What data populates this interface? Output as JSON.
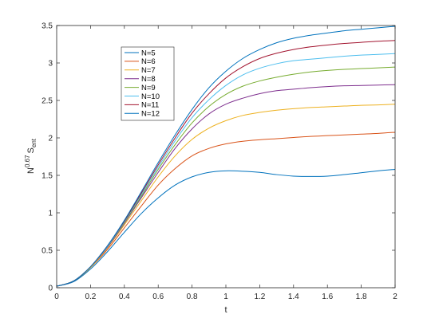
{
  "chart_data": {
    "type": "line",
    "title": "",
    "xlabel": "t",
    "ylabel": {
      "base": "N",
      "exponent": "0.67",
      "symbol": "S",
      "subscript": "ent"
    },
    "xlim": [
      0,
      2
    ],
    "ylim": [
      0,
      3.5
    ],
    "x_ticks": [
      "0",
      "0.2",
      "0.4",
      "0.6",
      "0.8",
      "1",
      "1.2",
      "1.4",
      "1.6",
      "1.8",
      "2"
    ],
    "y_ticks": [
      "0",
      "0.5",
      "1",
      "1.5",
      "2",
      "2.5",
      "3",
      "3.5"
    ],
    "grid": false,
    "legend_position": "top-left",
    "x": [
      0,
      0.1,
      0.2,
      0.3,
      0.4,
      0.5,
      0.6,
      0.7,
      0.8,
      0.9,
      1.0,
      1.1,
      1.2,
      1.3,
      1.4,
      1.5,
      1.6,
      1.7,
      1.8,
      1.9,
      2.0
    ],
    "series": [
      {
        "name": "N=5",
        "color": "#0072BD",
        "values": [
          0.02,
          0.08,
          0.25,
          0.48,
          0.74,
          0.99,
          1.2,
          1.37,
          1.48,
          1.54,
          1.56,
          1.555,
          1.54,
          1.51,
          1.49,
          1.485,
          1.49,
          1.51,
          1.535,
          1.56,
          1.58
        ]
      },
      {
        "name": "N=6",
        "color": "#D95319",
        "values": [
          0.02,
          0.09,
          0.27,
          0.51,
          0.8,
          1.09,
          1.37,
          1.59,
          1.76,
          1.86,
          1.92,
          1.955,
          1.975,
          1.99,
          2.005,
          2.02,
          2.03,
          2.04,
          2.05,
          2.06,
          2.075
        ]
      },
      {
        "name": "N=7",
        "color": "#EDB120",
        "values": [
          0.02,
          0.09,
          0.27,
          0.53,
          0.84,
          1.16,
          1.48,
          1.76,
          1.98,
          2.13,
          2.23,
          2.3,
          2.34,
          2.37,
          2.39,
          2.405,
          2.415,
          2.425,
          2.435,
          2.44,
          2.45
        ]
      },
      {
        "name": "N=8",
        "color": "#7E2F8E",
        "values": [
          0.02,
          0.09,
          0.28,
          0.54,
          0.86,
          1.2,
          1.54,
          1.86,
          2.12,
          2.32,
          2.45,
          2.53,
          2.59,
          2.63,
          2.65,
          2.67,
          2.685,
          2.695,
          2.7,
          2.705,
          2.71
        ]
      },
      {
        "name": "N=9",
        "color": "#77AC30",
        "values": [
          0.02,
          0.09,
          0.28,
          0.55,
          0.87,
          1.22,
          1.58,
          1.91,
          2.2,
          2.42,
          2.58,
          2.69,
          2.76,
          2.81,
          2.85,
          2.88,
          2.9,
          2.915,
          2.925,
          2.935,
          2.945
        ]
      },
      {
        "name": "N=10",
        "color": "#4DBEEE",
        "values": [
          0.02,
          0.09,
          0.28,
          0.55,
          0.88,
          1.24,
          1.61,
          1.96,
          2.27,
          2.51,
          2.7,
          2.84,
          2.93,
          2.99,
          3.03,
          3.05,
          3.07,
          3.09,
          3.105,
          3.115,
          3.125
        ]
      },
      {
        "name": "N=11",
        "color": "#A2142F",
        "values": [
          0.02,
          0.09,
          0.28,
          0.56,
          0.89,
          1.26,
          1.64,
          2.0,
          2.33,
          2.59,
          2.8,
          2.95,
          3.06,
          3.13,
          3.18,
          3.215,
          3.24,
          3.26,
          3.275,
          3.29,
          3.3
        ]
      },
      {
        "name": "N=12",
        "color": "#0072BD",
        "values": [
          0.02,
          0.09,
          0.28,
          0.56,
          0.9,
          1.28,
          1.67,
          2.04,
          2.38,
          2.67,
          2.89,
          3.06,
          3.18,
          3.27,
          3.33,
          3.37,
          3.4,
          3.43,
          3.45,
          3.47,
          3.49
        ]
      }
    ]
  }
}
